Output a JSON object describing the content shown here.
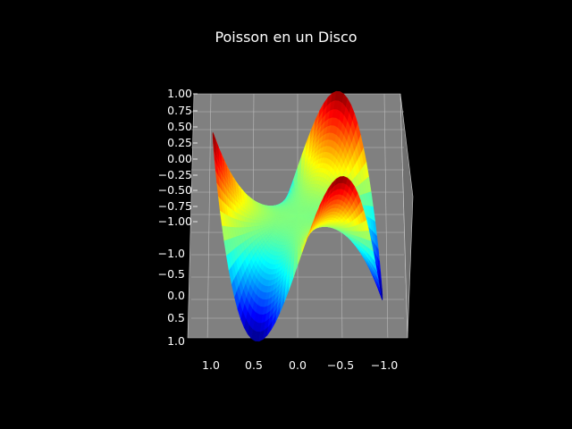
{
  "chart_data": {
    "type": "surface3d",
    "title": "Poisson en un Disco",
    "colormap": "jet",
    "background": "#000000",
    "pane_color": "#808080",
    "grid": true,
    "xlabel": "",
    "ylabel": "",
    "zlabel": "",
    "xlim": [
      -1.2,
      1.2
    ],
    "ylim": [
      -1.2,
      1.2
    ],
    "zlim": [
      -1.0,
      1.0
    ],
    "x_ticks": [
      "1.0",
      "0.5",
      "0.0",
      "−0.5",
      "−1.0"
    ],
    "y_ticks": [
      "−1.0",
      "−0.5",
      "0.0",
      "0.5",
      "1.0"
    ],
    "z_ticks": [
      "1.00",
      "0.75",
      "0.50",
      "0.25",
      "0.00",
      "−0.25",
      "−0.50",
      "−0.75",
      "−1.00"
    ],
    "surface": {
      "domain": "unit disk",
      "function": "r^3 * cos(3*theta)",
      "radial_samples": 30,
      "angular_samples": 120,
      "peaks": 3,
      "valleys": 3,
      "z_range": [
        -1.0,
        1.0
      ]
    }
  }
}
